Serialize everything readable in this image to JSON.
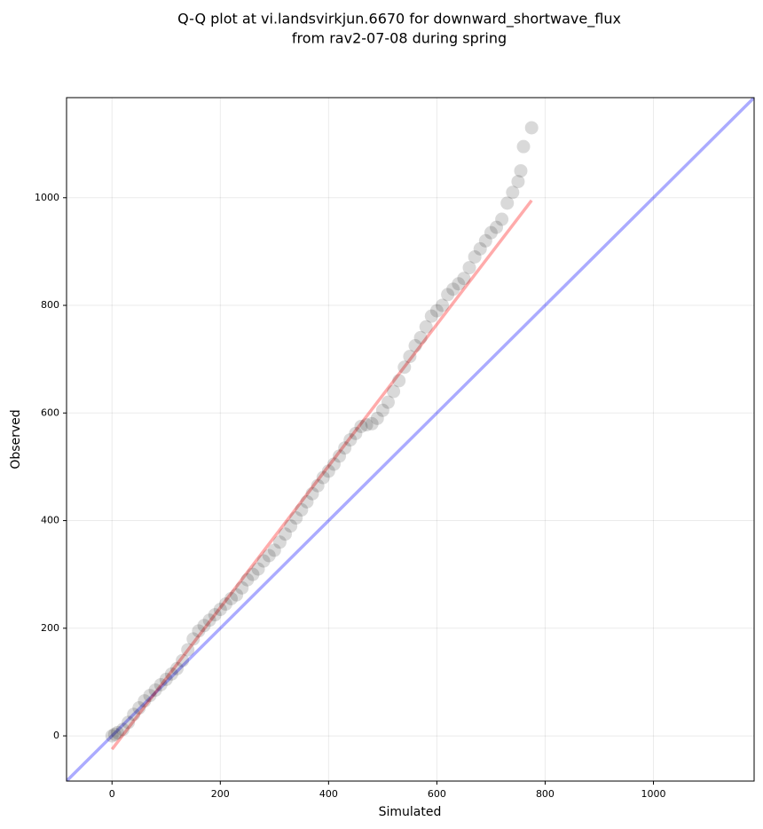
{
  "chart_data": {
    "type": "scatter",
    "title": [
      "Q-Q plot at vi.landsvirkjun.6670 for downward_shortwave_flux",
      "from rav2-07-08 during spring"
    ],
    "x_label": "Simulated",
    "y_label": "Observed",
    "x": [
      0,
      5,
      10,
      20,
      30,
      40,
      50,
      60,
      70,
      80,
      90,
      100,
      110,
      120,
      130,
      140,
      150,
      160,
      170,
      180,
      190,
      200,
      210,
      220,
      230,
      240,
      250,
      260,
      270,
      280,
      290,
      300,
      310,
      320,
      330,
      340,
      350,
      360,
      370,
      380,
      390,
      400,
      410,
      420,
      430,
      440,
      450,
      460,
      470,
      480,
      490,
      500,
      510,
      520,
      530,
      540,
      550,
      560,
      570,
      580,
      590,
      600,
      610,
      620,
      630,
      640,
      650,
      660,
      670,
      680,
      690,
      700,
      710,
      720,
      730,
      740,
      750,
      755,
      760,
      775
    ],
    "values": [
      0,
      3,
      6,
      12,
      25,
      40,
      52,
      65,
      75,
      85,
      95,
      105,
      115,
      125,
      140,
      160,
      180,
      195,
      205,
      215,
      225,
      235,
      245,
      255,
      262,
      275,
      290,
      300,
      310,
      325,
      335,
      345,
      360,
      375,
      390,
      405,
      420,
      435,
      450,
      465,
      480,
      492,
      505,
      520,
      535,
      550,
      562,
      575,
      578,
      580,
      590,
      605,
      620,
      640,
      660,
      685,
      705,
      725,
      740,
      760,
      780,
      790,
      800,
      820,
      830,
      840,
      850,
      870,
      890,
      905,
      920,
      935,
      945,
      960,
      990,
      1010,
      1030,
      1050,
      1095,
      1130
    ],
    "color": "#000000",
    "point_alpha": 0.15,
    "fit_line": {
      "x": [
        0,
        775
      ],
      "y": [
        -25,
        995
      ],
      "color": "#ff0000"
    },
    "reference_line_color": "#0000ff",
    "xlim": [
      -84,
      1186
    ],
    "ylim": [
      -84,
      1186
    ],
    "xticks": [
      0,
      200,
      400,
      600,
      800,
      1000
    ],
    "yticks": [
      0,
      200,
      400,
      600,
      800,
      1000
    ],
    "grid": true
  }
}
